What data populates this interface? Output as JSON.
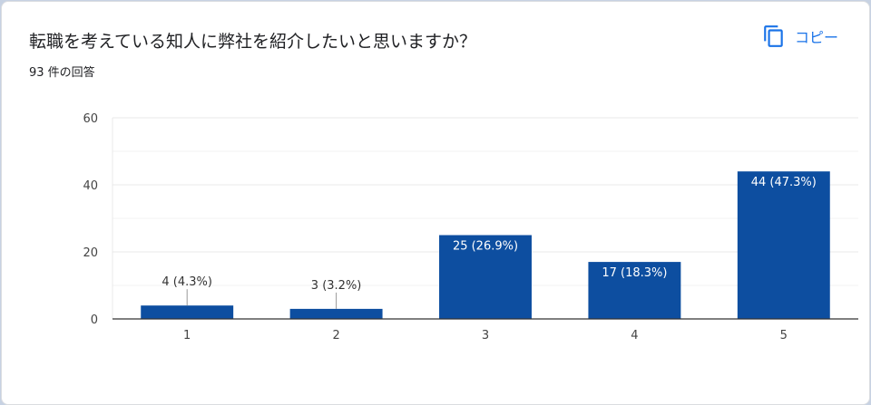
{
  "question": {
    "title": "転職を考えている知人に弊社を紹介したいと思いますか？",
    "response_count": "93 件の回答"
  },
  "copy_button": {
    "label": "コピー",
    "icon": "copy-icon"
  },
  "colors": {
    "bar": "#0d4ea0",
    "gridline": "#e9e9e9",
    "baseline": "#333333",
    "accent": "#1a73e8"
  },
  "chart_data": {
    "type": "bar",
    "categories": [
      "1",
      "2",
      "3",
      "4",
      "5"
    ],
    "values": [
      4,
      3,
      25,
      17,
      44
    ],
    "data_labels": [
      "4 (4.3%)",
      "3 (3.2%)",
      "25 (26.9%)",
      "17 (18.3%)",
      "44 (47.3%)"
    ],
    "ylim": [
      0,
      60
    ],
    "yticks": [
      0,
      20,
      40,
      60
    ],
    "grid": true,
    "legend": "none"
  }
}
